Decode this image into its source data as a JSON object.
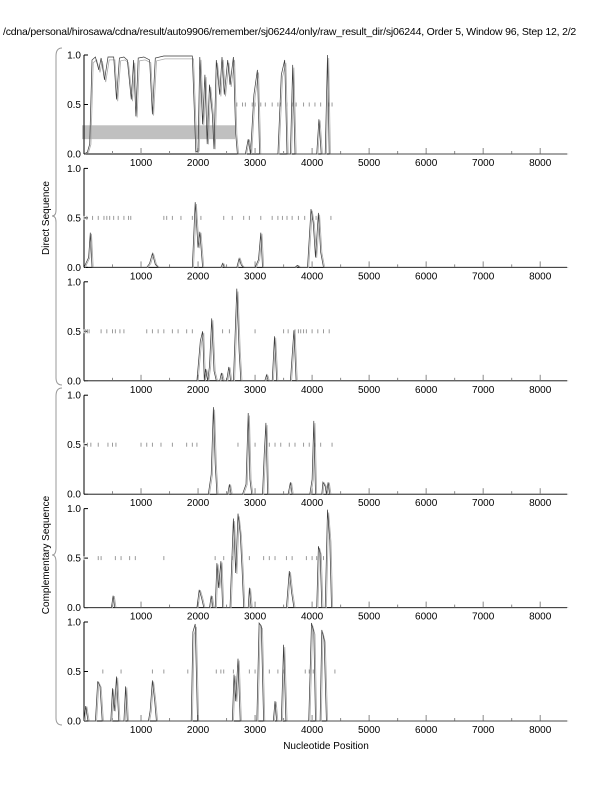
{
  "title": "/cdna/personal/hirosawa/cdna/result/auto9906/remember/sj06244/only/raw_result_dir/sj06244, Order 5, Window 96, Step 12, 2/2",
  "xlabel": "Nucleotide Position",
  "group_labels": [
    "Direct Sequence",
    "Complementary Sequence"
  ],
  "colors": {
    "line": "#3a3a3a",
    "marks": "#9a9a9a",
    "band": "#c0c0c0",
    "axis": "#000000"
  },
  "chart_data": {
    "type": "line",
    "xlim": [
      0,
      8470
    ],
    "ylim": [
      0,
      1
    ],
    "x_ticks": [
      1000,
      2000,
      3000,
      4000,
      5000,
      6000,
      7000,
      8000
    ],
    "y_ticks": [
      "0.0",
      "0.5",
      "1.0"
    ],
    "grid": false,
    "panels": [
      {
        "group": "Direct Sequence",
        "band": {
          "x": [
            0,
            2650
          ],
          "y": [
            0.15,
            0.29
          ]
        },
        "marks_at_0_5": [
          2680,
          2780,
          2830,
          2950,
          3000,
          3100,
          3180,
          3300,
          3400,
          3450,
          3560,
          3650,
          3720,
          3850,
          3950,
          4050,
          4150,
          4300,
          4350
        ],
        "points": [
          [
            0,
            0
          ],
          [
            60,
            0.02
          ],
          [
            100,
            0.1
          ],
          [
            140,
            0.95
          ],
          [
            200,
            0.98
          ],
          [
            260,
            0.85
          ],
          [
            300,
            0.97
          ],
          [
            360,
            0.75
          ],
          [
            420,
            0.98
          ],
          [
            520,
            0.98
          ],
          [
            570,
            0.55
          ],
          [
            620,
            0.97
          ],
          [
            700,
            0.98
          ],
          [
            760,
            0.95
          ],
          [
            830,
            0.55
          ],
          [
            870,
            0.95
          ],
          [
            910,
            0.38
          ],
          [
            950,
            0.97
          ],
          [
            1050,
            0.98
          ],
          [
            1150,
            0.95
          ],
          [
            1200,
            0.4
          ],
          [
            1250,
            0.97
          ],
          [
            1400,
            0.99
          ],
          [
            1900,
            0.99
          ],
          [
            1930,
            0.5
          ],
          [
            1960,
            0.02
          ],
          [
            2000,
            0.03
          ],
          [
            2030,
            0.98
          ],
          [
            2080,
            0.3
          ],
          [
            2120,
            0.8
          ],
          [
            2160,
            0.1
          ],
          [
            2200,
            0.7
          ],
          [
            2250,
            0.4
          ],
          [
            2280,
            0.05
          ],
          [
            2320,
            0.95
          ],
          [
            2380,
            0.6
          ],
          [
            2420,
            0.98
          ],
          [
            2460,
            0.6
          ],
          [
            2520,
            0.95
          ],
          [
            2560,
            0.7
          ],
          [
            2620,
            0.98
          ],
          [
            2660,
            0.2
          ],
          [
            2690,
            0
          ],
          [
            2830,
            0
          ],
          [
            2880,
            0.15
          ],
          [
            2920,
            0
          ],
          [
            2980,
            0.6
          ],
          [
            3040,
            0.85
          ],
          [
            3080,
            0
          ],
          [
            3400,
            0
          ],
          [
            3460,
            0.8
          ],
          [
            3520,
            0.95
          ],
          [
            3560,
            0
          ],
          [
            3620,
            0
          ],
          [
            3660,
            0.9
          ],
          [
            3700,
            0
          ],
          [
            4080,
            0
          ],
          [
            4120,
            0.35
          ],
          [
            4160,
            0
          ],
          [
            4230,
            0
          ],
          [
            4270,
            1.0
          ],
          [
            4300,
            0
          ],
          [
            8470,
            0
          ]
        ]
      },
      {
        "group": "Direct Sequence",
        "marks_at_0_5": [
          0,
          50,
          150,
          250,
          350,
          400,
          450,
          520,
          600,
          700,
          780,
          820,
          1400,
          1450,
          1550,
          1700,
          1900,
          2050,
          2450,
          2600,
          2800,
          2900,
          3100,
          3300,
          3400,
          3480,
          3560,
          3650,
          3760,
          3870,
          4000,
          4070,
          4330
        ],
        "points": [
          [
            0,
            0
          ],
          [
            40,
            0.05
          ],
          [
            80,
            0.1
          ],
          [
            110,
            0.35
          ],
          [
            140,
            0
          ],
          [
            1100,
            0
          ],
          [
            1150,
            0.04
          ],
          [
            1200,
            0.14
          ],
          [
            1250,
            0.03
          ],
          [
            1300,
            0
          ],
          [
            1900,
            0
          ],
          [
            1950,
            0.66
          ],
          [
            2000,
            0.2
          ],
          [
            2030,
            0.36
          ],
          [
            2080,
            0
          ],
          [
            2400,
            0
          ],
          [
            2430,
            0.04
          ],
          [
            2460,
            0
          ],
          [
            2680,
            0
          ],
          [
            2720,
            0.09
          ],
          [
            2760,
            0.02
          ],
          [
            2800,
            0
          ],
          [
            3000,
            0
          ],
          [
            3060,
            0.08
          ],
          [
            3100,
            0.35
          ],
          [
            3130,
            0
          ],
          [
            3700,
            0
          ],
          [
            3740,
            0.02
          ],
          [
            3780,
            0
          ],
          [
            3920,
            0
          ],
          [
            3980,
            0.59
          ],
          [
            4020,
            0.45
          ],
          [
            4060,
            0.1
          ],
          [
            4110,
            0.55
          ],
          [
            4150,
            0.15
          ],
          [
            4200,
            0
          ],
          [
            8470,
            0
          ]
        ]
      },
      {
        "group": "Direct Sequence",
        "marks_at_0_5": [
          0,
          30,
          60,
          90,
          300,
          400,
          500,
          550,
          630,
          700,
          1100,
          1200,
          1300,
          1400,
          1550,
          1650,
          1800,
          1900,
          2430,
          2550,
          3000,
          3500,
          3580,
          3700,
          3760,
          3800,
          3850,
          3900,
          4000,
          4100,
          4200,
          4300
        ],
        "points": [
          [
            0,
            0
          ],
          [
            1980,
            0
          ],
          [
            2040,
            0.4
          ],
          [
            2080,
            0.5
          ],
          [
            2110,
            0
          ],
          [
            2130,
            0.12
          ],
          [
            2170,
            0
          ],
          [
            2200,
            0.15
          ],
          [
            2240,
            0.63
          ],
          [
            2280,
            0.1
          ],
          [
            2320,
            0
          ],
          [
            2380,
            0
          ],
          [
            2410,
            0.08
          ],
          [
            2440,
            0
          ],
          [
            2500,
            0
          ],
          [
            2540,
            0.14
          ],
          [
            2570,
            0
          ],
          [
            2620,
            0
          ],
          [
            2680,
            0.93
          ],
          [
            2720,
            0.3
          ],
          [
            2750,
            0
          ],
          [
            3170,
            0
          ],
          [
            3200,
            0.06
          ],
          [
            3230,
            0
          ],
          [
            3300,
            0
          ],
          [
            3340,
            0.45
          ],
          [
            3380,
            0
          ],
          [
            3620,
            0
          ],
          [
            3680,
            0.51
          ],
          [
            3720,
            0
          ],
          [
            8470,
            0
          ]
        ]
      },
      {
        "group": "Complementary Sequence",
        "marks_at_0_5": [
          0,
          60,
          120,
          250,
          420,
          500,
          560,
          1000,
          1100,
          1200,
          1350,
          1550,
          1800,
          1900,
          1980,
          2700,
          3000,
          3250,
          3350,
          3450,
          3600,
          3700,
          3850,
          3950,
          4050,
          4150,
          4350
        ],
        "points": [
          [
            0,
            0
          ],
          [
            2180,
            0
          ],
          [
            2230,
            0.2
          ],
          [
            2270,
            0.88
          ],
          [
            2300,
            0.3
          ],
          [
            2330,
            0
          ],
          [
            2520,
            0
          ],
          [
            2550,
            0.1
          ],
          [
            2580,
            0
          ],
          [
            2780,
            0
          ],
          [
            2840,
            0.1
          ],
          [
            2880,
            0.82
          ],
          [
            2910,
            0.15
          ],
          [
            2940,
            0
          ],
          [
            3130,
            0
          ],
          [
            3160,
            0.4
          ],
          [
            3190,
            0.72
          ],
          [
            3220,
            0
          ],
          [
            3580,
            0
          ],
          [
            3620,
            0.12
          ],
          [
            3650,
            0
          ],
          [
            3960,
            0
          ],
          [
            4000,
            0.15
          ],
          [
            4030,
            0.74
          ],
          [
            4060,
            0
          ],
          [
            4170,
            0
          ],
          [
            4190,
            0.12
          ],
          [
            4230,
            0.08
          ],
          [
            4250,
            0
          ],
          [
            4280,
            0.12
          ],
          [
            4310,
            0
          ],
          [
            8470,
            0
          ]
        ]
      },
      {
        "group": "Complementary Sequence",
        "marks_at_0_5": [
          0,
          250,
          300,
          550,
          650,
          800,
          900,
          1400,
          2300,
          2450,
          2600,
          2900,
          3150,
          3250,
          3350,
          3550,
          3650,
          3900,
          4000,
          4080,
          4200
        ],
        "points": [
          [
            0,
            0
          ],
          [
            480,
            0
          ],
          [
            510,
            0.12
          ],
          [
            540,
            0
          ],
          [
            1980,
            0
          ],
          [
            2020,
            0.18
          ],
          [
            2060,
            0.1
          ],
          [
            2100,
            0
          ],
          [
            2200,
            0
          ],
          [
            2230,
            0.12
          ],
          [
            2260,
            0
          ],
          [
            2300,
            0
          ],
          [
            2330,
            0.45
          ],
          [
            2360,
            0.2
          ],
          [
            2400,
            0.47
          ],
          [
            2430,
            0
          ],
          [
            2560,
            0
          ],
          [
            2620,
            0.9
          ],
          [
            2660,
            0.35
          ],
          [
            2700,
            0.95
          ],
          [
            2740,
            0.75
          ],
          [
            2770,
            0.4
          ],
          [
            2800,
            0
          ],
          [
            2880,
            0
          ],
          [
            2900,
            0.2
          ],
          [
            2930,
            0
          ],
          [
            3550,
            0
          ],
          [
            3600,
            0.37
          ],
          [
            3640,
            0.15
          ],
          [
            3680,
            0
          ],
          [
            4080,
            0
          ],
          [
            4110,
            0.62
          ],
          [
            4140,
            0.55
          ],
          [
            4170,
            0
          ],
          [
            4230,
            0
          ],
          [
            4270,
            0.99
          ],
          [
            4310,
            0.68
          ],
          [
            4340,
            0
          ],
          [
            8470,
            0
          ]
        ]
      },
      {
        "group": "Complementary Sequence",
        "marks_at_0_5": [
          330,
          650,
          1200,
          1400,
          1820,
          2320,
          2400,
          2450,
          2620,
          2900,
          3000,
          3250,
          3400,
          3500,
          3880,
          3950,
          4020,
          4400
        ],
        "points": [
          [
            0,
            0
          ],
          [
            30,
            0.15
          ],
          [
            70,
            0
          ],
          [
            200,
            0
          ],
          [
            240,
            0.4
          ],
          [
            280,
            0.35
          ],
          [
            320,
            0
          ],
          [
            470,
            0
          ],
          [
            500,
            0.33
          ],
          [
            530,
            0.1
          ],
          [
            570,
            0.45
          ],
          [
            610,
            0
          ],
          [
            700,
            0
          ],
          [
            730,
            0.35
          ],
          [
            760,
            0
          ],
          [
            1130,
            0
          ],
          [
            1160,
            0.1
          ],
          [
            1200,
            0.41
          ],
          [
            1240,
            0.2
          ],
          [
            1270,
            0
          ],
          [
            1880,
            0
          ],
          [
            1910,
            0.9
          ],
          [
            1950,
            0.98
          ],
          [
            1990,
            0
          ],
          [
            2600,
            0
          ],
          [
            2630,
            0.47
          ],
          [
            2660,
            0.2
          ],
          [
            2700,
            0.63
          ],
          [
            2740,
            0
          ],
          [
            3030,
            0
          ],
          [
            3070,
            0.99
          ],
          [
            3110,
            0.96
          ],
          [
            3150,
            0
          ],
          [
            3320,
            0
          ],
          [
            3350,
            0.2
          ],
          [
            3380,
            0
          ],
          [
            3460,
            0
          ],
          [
            3500,
            0.77
          ],
          [
            3540,
            0
          ],
          [
            3940,
            0
          ],
          [
            3990,
            0.99
          ],
          [
            4030,
            0.9
          ],
          [
            4060,
            0
          ],
          [
            4140,
            0
          ],
          [
            4170,
            0.92
          ],
          [
            4210,
            0.82
          ],
          [
            4250,
            0
          ],
          [
            8470,
            0
          ]
        ]
      }
    ]
  }
}
